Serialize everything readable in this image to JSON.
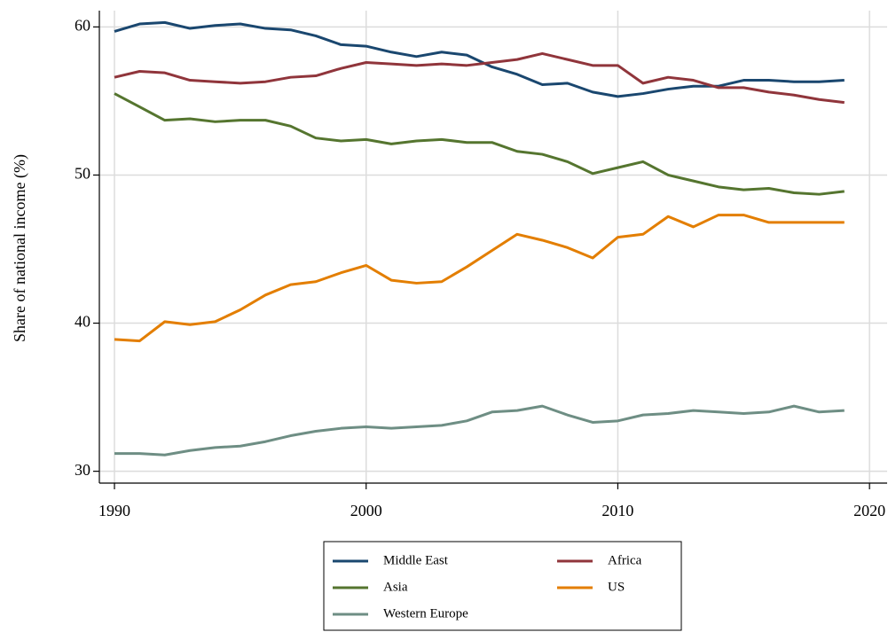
{
  "chart_data": {
    "type": "line",
    "y_label": "Share of national income (%)",
    "x": [
      1990,
      1991,
      1992,
      1993,
      1994,
      1995,
      1996,
      1997,
      1998,
      1999,
      2000,
      2001,
      2002,
      2003,
      2004,
      2005,
      2006,
      2007,
      2008,
      2009,
      2010,
      2011,
      2012,
      2013,
      2014,
      2015,
      2016,
      2017,
      2018,
      2019
    ],
    "series": [
      {
        "name": "Middle East",
        "color": "#1a476f",
        "values": [
          59.7,
          60.2,
          60.3,
          59.9,
          60.1,
          60.2,
          59.9,
          59.8,
          59.4,
          58.8,
          58.7,
          58.3,
          58.0,
          58.3,
          58.1,
          57.3,
          56.8,
          56.1,
          56.2,
          55.6,
          55.3,
          55.5,
          55.8,
          56.0,
          56.0,
          56.4,
          56.4,
          56.3,
          56.3,
          56.4
        ]
      },
      {
        "name": "Africa",
        "color": "#90353b",
        "values": [
          56.6,
          57.0,
          56.9,
          56.4,
          56.3,
          56.2,
          56.3,
          56.6,
          56.7,
          57.2,
          57.6,
          57.5,
          57.4,
          57.5,
          57.4,
          57.6,
          57.8,
          58.2,
          57.8,
          57.4,
          57.4,
          56.2,
          56.6,
          56.4,
          55.9,
          55.9,
          55.6,
          55.4,
          55.1,
          54.9
        ]
      },
      {
        "name": "Asia",
        "color": "#55752f",
        "values": [
          55.5,
          54.6,
          53.7,
          53.8,
          53.6,
          53.7,
          53.7,
          53.3,
          52.5,
          52.3,
          52.4,
          52.1,
          52.3,
          52.4,
          52.2,
          52.2,
          51.6,
          51.4,
          50.9,
          50.1,
          50.5,
          50.9,
          50.0,
          49.6,
          49.2,
          49.0,
          49.1,
          48.8,
          48.7,
          48.9
        ]
      },
      {
        "name": "US",
        "color": "#e37e00",
        "values": [
          38.9,
          38.8,
          40.1,
          39.9,
          40.1,
          40.9,
          41.9,
          42.6,
          42.8,
          43.4,
          43.9,
          42.9,
          42.7,
          42.8,
          43.8,
          44.9,
          46.0,
          45.6,
          45.1,
          44.4,
          45.8,
          46.0,
          47.2,
          46.5,
          47.3,
          47.3,
          46.8,
          46.8,
          46.8,
          46.8
        ]
      },
      {
        "name": "Western Europe",
        "color": "#6e8e84",
        "values": [
          31.2,
          31.2,
          31.1,
          31.4,
          31.6,
          31.7,
          32.0,
          32.4,
          32.7,
          32.9,
          33.0,
          32.9,
          33.0,
          33.1,
          33.4,
          34.0,
          34.1,
          34.4,
          33.8,
          33.3,
          33.4,
          33.8,
          33.9,
          34.1,
          34.0,
          33.9,
          34.0,
          34.4,
          34.0,
          34.1
        ]
      }
    ],
    "xlim": [
      1989.4,
      2020.7
    ],
    "xticks": [
      1990,
      2000,
      2010,
      2020
    ],
    "ylim": [
      29.2,
      61.1
    ],
    "yticks": [
      30,
      40,
      50,
      60
    ],
    "grid": true,
    "legend": "bottom"
  }
}
